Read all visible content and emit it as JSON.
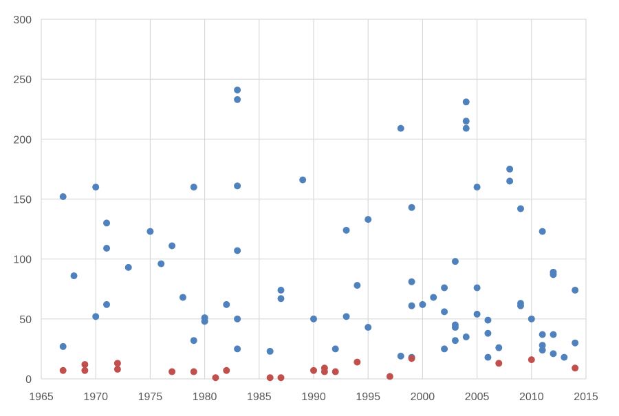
{
  "chart_data": {
    "type": "scatter",
    "title": "",
    "xlabel": "",
    "ylabel": "",
    "xlim": [
      1965,
      2015
    ],
    "ylim": [
      0,
      300
    ],
    "x_ticks": [
      1965,
      1970,
      1975,
      1980,
      1985,
      1990,
      1995,
      2000,
      2005,
      2010,
      2015
    ],
    "y_ticks": [
      0,
      50,
      100,
      150,
      200,
      250,
      300
    ],
    "grid": true,
    "legend": "none",
    "series": [
      {
        "color": "#4F81BD",
        "points": [
          [
            1967,
            152
          ],
          [
            1967,
            27
          ],
          [
            1968,
            86
          ],
          [
            1970,
            160
          ],
          [
            1970,
            52
          ],
          [
            1971,
            130
          ],
          [
            1971,
            109
          ],
          [
            1971,
            62
          ],
          [
            1973,
            93
          ],
          [
            1975,
            123
          ],
          [
            1976,
            96
          ],
          [
            1977,
            111
          ],
          [
            1978,
            68
          ],
          [
            1979,
            160
          ],
          [
            1979,
            32
          ],
          [
            1980,
            51
          ],
          [
            1980,
            48
          ],
          [
            1982,
            62
          ],
          [
            1983,
            241
          ],
          [
            1983,
            233
          ],
          [
            1983,
            161
          ],
          [
            1983,
            107
          ],
          [
            1983,
            50
          ],
          [
            1983,
            25
          ],
          [
            1986,
            23
          ],
          [
            1987,
            74
          ],
          [
            1987,
            67
          ],
          [
            1989,
            166
          ],
          [
            1990,
            50
          ],
          [
            1992,
            25
          ],
          [
            1993,
            124
          ],
          [
            1993,
            52
          ],
          [
            1994,
            78
          ],
          [
            1995,
            133
          ],
          [
            1995,
            43
          ],
          [
            1998,
            209
          ],
          [
            1998,
            19
          ],
          [
            1999,
            143
          ],
          [
            1999,
            81
          ],
          [
            1999,
            61
          ],
          [
            1999,
            18
          ],
          [
            2000,
            62
          ],
          [
            2001,
            68
          ],
          [
            2002,
            76
          ],
          [
            2002,
            56
          ],
          [
            2002,
            25
          ],
          [
            2003,
            98
          ],
          [
            2003,
            45
          ],
          [
            2003,
            43
          ],
          [
            2003,
            32
          ],
          [
            2004,
            231
          ],
          [
            2004,
            215
          ],
          [
            2004,
            209
          ],
          [
            2004,
            35
          ],
          [
            2005,
            160
          ],
          [
            2005,
            76
          ],
          [
            2005,
            54
          ],
          [
            2006,
            49
          ],
          [
            2006,
            38
          ],
          [
            2006,
            18
          ],
          [
            2007,
            26
          ],
          [
            2008,
            175
          ],
          [
            2008,
            165
          ],
          [
            2009,
            142
          ],
          [
            2009,
            63
          ],
          [
            2009,
            61
          ],
          [
            2010,
            50
          ],
          [
            2011,
            123
          ],
          [
            2011,
            37
          ],
          [
            2011,
            28
          ],
          [
            2011,
            24
          ],
          [
            2012,
            89
          ],
          [
            2012,
            87
          ],
          [
            2012,
            37
          ],
          [
            2012,
            21
          ],
          [
            2013,
            18
          ],
          [
            2014,
            74
          ],
          [
            2014,
            30
          ]
        ]
      },
      {
        "color": "#C0504D",
        "points": [
          [
            1967,
            7
          ],
          [
            1969,
            12
          ],
          [
            1969,
            7
          ],
          [
            1972,
            13
          ],
          [
            1972,
            8
          ],
          [
            1977,
            6
          ],
          [
            1979,
            6
          ],
          [
            1981,
            1
          ],
          [
            1982,
            7
          ],
          [
            1986,
            1
          ],
          [
            1987,
            1
          ],
          [
            1990,
            7
          ],
          [
            1991,
            9
          ],
          [
            1991,
            6
          ],
          [
            1992,
            6
          ],
          [
            1994,
            14
          ],
          [
            1997,
            2
          ],
          [
            1999,
            17
          ],
          [
            2007,
            13
          ],
          [
            2010,
            16
          ],
          [
            2014,
            9
          ]
        ]
      }
    ]
  }
}
